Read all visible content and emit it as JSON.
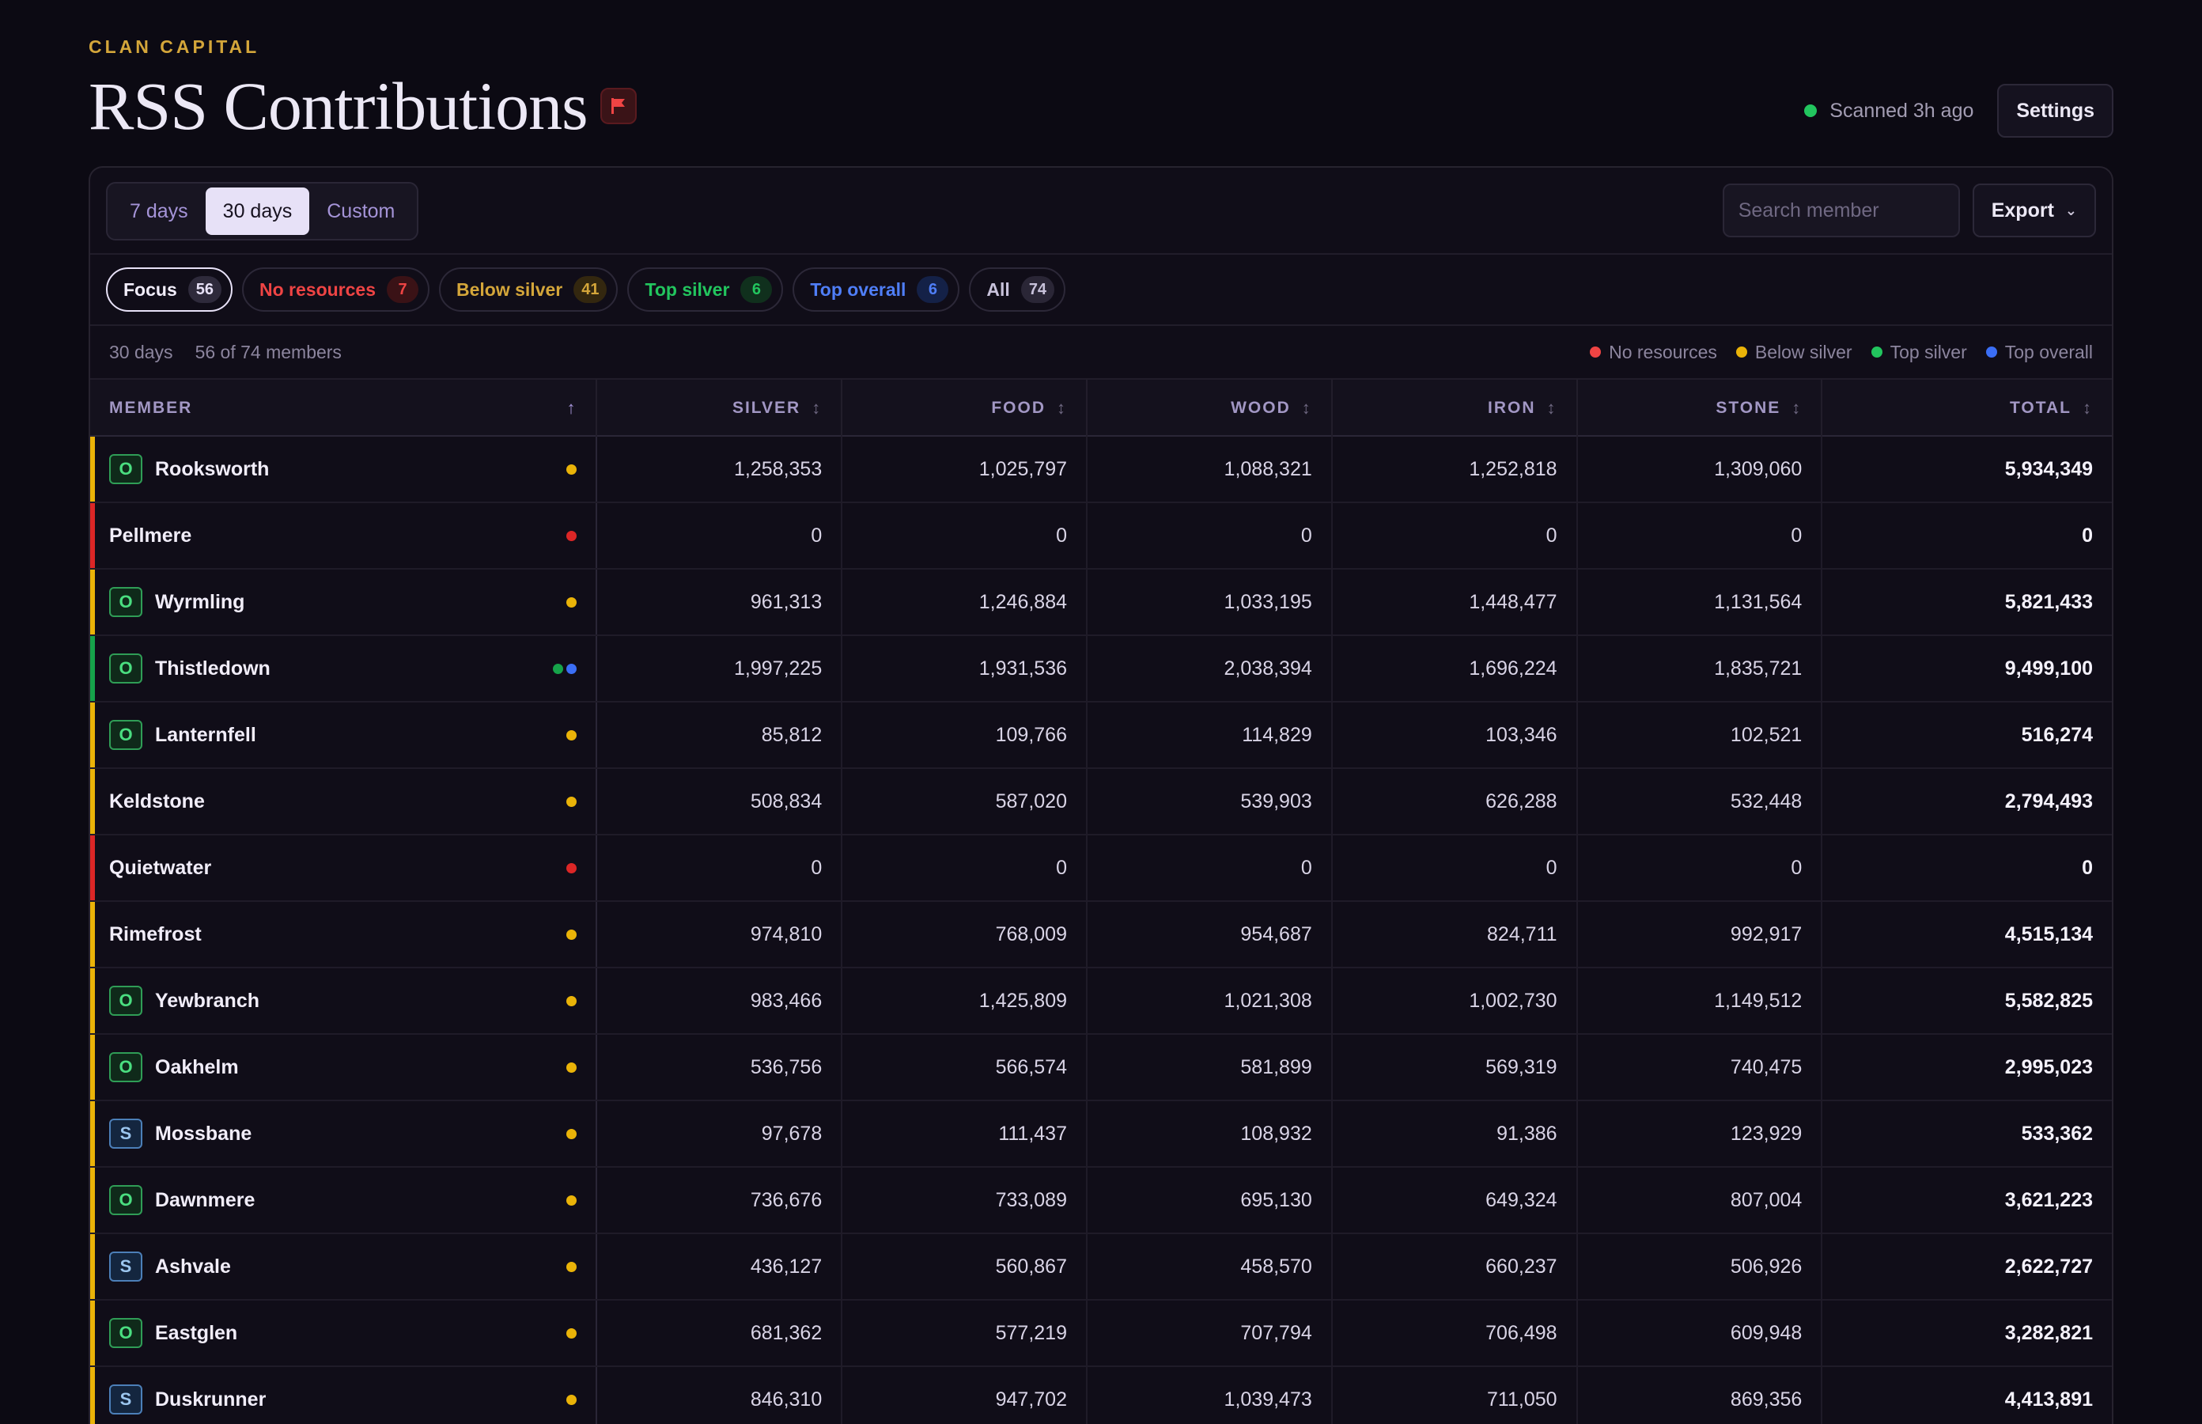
{
  "header": {
    "eyebrow": "CLAN CAPITAL",
    "title": "RSS Contributions",
    "scan_status": "Scanned 3h ago",
    "settings_label": "Settings"
  },
  "toolbar": {
    "ranges": [
      "7 days",
      "30 days",
      "Custom"
    ],
    "active_range": "30 days",
    "search_placeholder": "Search member",
    "export_label": "Export"
  },
  "filters": [
    {
      "label": "Focus",
      "count": "56",
      "kind": "focus"
    },
    {
      "label": "No resources",
      "count": "7",
      "kind": "nores"
    },
    {
      "label": "Below silver",
      "count": "41",
      "kind": "below"
    },
    {
      "label": "Top silver",
      "count": "6",
      "kind": "topsil"
    },
    {
      "label": "Top overall",
      "count": "6",
      "kind": "topall"
    },
    {
      "label": "All",
      "count": "74",
      "kind": "all"
    }
  ],
  "meta": {
    "range": "30 days",
    "summary": "56 of 74 members",
    "legend": [
      {
        "label": "No resources",
        "color": "#ef4444"
      },
      {
        "label": "Below silver",
        "color": "#eab308"
      },
      {
        "label": "Top silver",
        "color": "#22c55e"
      },
      {
        "label": "Top overall",
        "color": "#3b6ef5"
      }
    ]
  },
  "colors": {
    "red": "#dc2626",
    "yellow": "#eab308",
    "green": "#16a34a",
    "blue": "#3b6ef5"
  },
  "columns": {
    "member": "MEMBER",
    "silver": "SILVER",
    "food": "FOOD",
    "wood": "WOOD",
    "iron": "IRON",
    "stone": "STONE",
    "total": "TOTAL"
  },
  "rows": [
    {
      "name": "Rooksworth",
      "badge": "O",
      "status": "yellow",
      "dots": [
        "yellow"
      ],
      "silver": "1,258,353",
      "food": "1,025,797",
      "wood": "1,088,321",
      "iron": "1,252,818",
      "stone": "1,309,060",
      "total": "5,934,349"
    },
    {
      "name": "Pellmere",
      "badge": "",
      "status": "red",
      "dots": [
        "red"
      ],
      "silver": "0",
      "food": "0",
      "wood": "0",
      "iron": "0",
      "stone": "0",
      "total": "0"
    },
    {
      "name": "Wyrmling",
      "badge": "O",
      "status": "yellow",
      "dots": [
        "yellow"
      ],
      "silver": "961,313",
      "food": "1,246,884",
      "wood": "1,033,195",
      "iron": "1,448,477",
      "stone": "1,131,564",
      "total": "5,821,433"
    },
    {
      "name": "Thistledown",
      "badge": "O",
      "status": "green",
      "dots": [
        "green",
        "blue"
      ],
      "silver": "1,997,225",
      "food": "1,931,536",
      "wood": "2,038,394",
      "iron": "1,696,224",
      "stone": "1,835,721",
      "total": "9,499,100"
    },
    {
      "name": "Lanternfell",
      "badge": "O",
      "status": "yellow",
      "dots": [
        "yellow"
      ],
      "silver": "85,812",
      "food": "109,766",
      "wood": "114,829",
      "iron": "103,346",
      "stone": "102,521",
      "total": "516,274"
    },
    {
      "name": "Keldstone",
      "badge": "",
      "status": "yellow",
      "dots": [
        "yellow"
      ],
      "silver": "508,834",
      "food": "587,020",
      "wood": "539,903",
      "iron": "626,288",
      "stone": "532,448",
      "total": "2,794,493"
    },
    {
      "name": "Quietwater",
      "badge": "",
      "status": "red",
      "dots": [
        "red"
      ],
      "silver": "0",
      "food": "0",
      "wood": "0",
      "iron": "0",
      "stone": "0",
      "total": "0"
    },
    {
      "name": "Rimefrost",
      "badge": "",
      "status": "yellow",
      "dots": [
        "yellow"
      ],
      "silver": "974,810",
      "food": "768,009",
      "wood": "954,687",
      "iron": "824,711",
      "stone": "992,917",
      "total": "4,515,134"
    },
    {
      "name": "Yewbranch",
      "badge": "O",
      "status": "yellow",
      "dots": [
        "yellow"
      ],
      "silver": "983,466",
      "food": "1,425,809",
      "wood": "1,021,308",
      "iron": "1,002,730",
      "stone": "1,149,512",
      "total": "5,582,825"
    },
    {
      "name": "Oakhelm",
      "badge": "O",
      "status": "yellow",
      "dots": [
        "yellow"
      ],
      "silver": "536,756",
      "food": "566,574",
      "wood": "581,899",
      "iron": "569,319",
      "stone": "740,475",
      "total": "2,995,023"
    },
    {
      "name": "Mossbane",
      "badge": "S",
      "status": "yellow",
      "dots": [
        "yellow"
      ],
      "silver": "97,678",
      "food": "111,437",
      "wood": "108,932",
      "iron": "91,386",
      "stone": "123,929",
      "total": "533,362"
    },
    {
      "name": "Dawnmere",
      "badge": "O",
      "status": "yellow",
      "dots": [
        "yellow"
      ],
      "silver": "736,676",
      "food": "733,089",
      "wood": "695,130",
      "iron": "649,324",
      "stone": "807,004",
      "total": "3,621,223"
    },
    {
      "name": "Ashvale",
      "badge": "S",
      "status": "yellow",
      "dots": [
        "yellow"
      ],
      "silver": "436,127",
      "food": "560,867",
      "wood": "458,570",
      "iron": "660,237",
      "stone": "506,926",
      "total": "2,622,727"
    },
    {
      "name": "Eastglen",
      "badge": "O",
      "status": "yellow",
      "dots": [
        "yellow"
      ],
      "silver": "681,362",
      "food": "577,219",
      "wood": "707,794",
      "iron": "706,498",
      "stone": "609,948",
      "total": "3,282,821"
    },
    {
      "name": "Duskrunner",
      "badge": "S",
      "status": "yellow",
      "dots": [
        "yellow"
      ],
      "silver": "846,310",
      "food": "947,702",
      "wood": "1,039,473",
      "iron": "711,050",
      "stone": "869,356",
      "total": "4,413,891"
    }
  ]
}
